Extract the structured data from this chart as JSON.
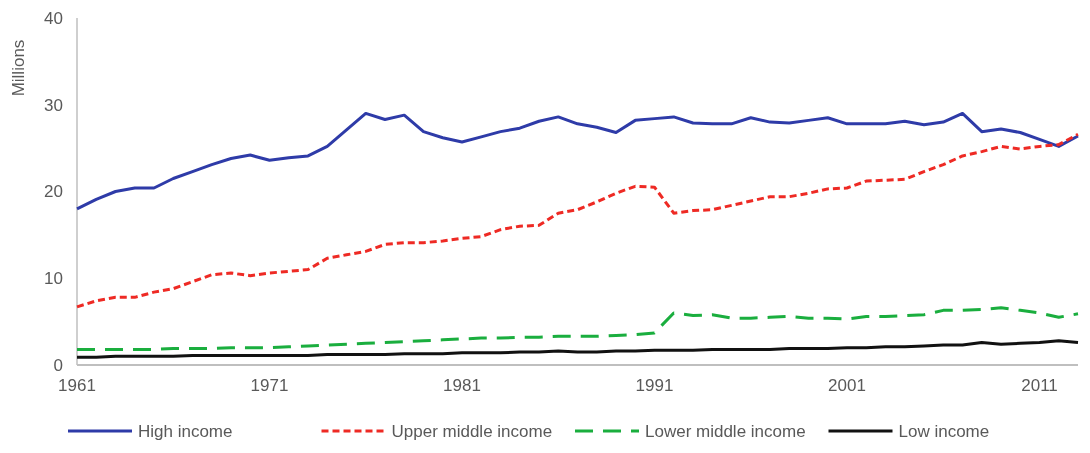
{
  "chart_data": {
    "type": "line",
    "ylabel": "Millions",
    "x": [
      1961,
      1962,
      1963,
      1964,
      1965,
      1966,
      1967,
      1968,
      1969,
      1970,
      1971,
      1972,
      1973,
      1974,
      1975,
      1976,
      1977,
      1978,
      1979,
      1980,
      1981,
      1982,
      1983,
      1984,
      1985,
      1986,
      1987,
      1988,
      1989,
      1990,
      1991,
      1992,
      1993,
      1994,
      1995,
      1996,
      1997,
      1998,
      1999,
      2000,
      2001,
      2002,
      2003,
      2004,
      2005,
      2006,
      2007,
      2008,
      2009,
      2010,
      2011,
      2012,
      2013
    ],
    "xlim": [
      1961,
      2013
    ],
    "xticks": [
      1961,
      1971,
      1981,
      1991,
      2001,
      2011
    ],
    "ylim": [
      0,
      40
    ],
    "yticks": [
      0,
      10,
      20,
      30,
      40
    ],
    "grid": false,
    "legend": "bottom",
    "series": [
      {
        "name": "High income",
        "color": "#2e3ba8",
        "line_style": "solid",
        "values": [
          18.0,
          19.1,
          20.0,
          20.4,
          20.4,
          21.5,
          22.3,
          23.1,
          23.8,
          24.2,
          23.6,
          23.9,
          24.1,
          25.2,
          27.1,
          29.0,
          28.3,
          28.8,
          26.9,
          26.2,
          25.7,
          26.3,
          26.9,
          27.3,
          28.1,
          28.6,
          27.8,
          27.4,
          26.8,
          28.2,
          28.4,
          28.6,
          27.9,
          27.8,
          27.8,
          28.5,
          28.0,
          27.9,
          28.2,
          28.5,
          27.8,
          27.8,
          27.8,
          28.1,
          27.7,
          28.0,
          29.0,
          26.9,
          27.2,
          26.8,
          26.0,
          25.2,
          26.4
        ]
      },
      {
        "name": "Upper middle income",
        "color": "#ee2a24",
        "line_style": "dotted",
        "values": [
          6.7,
          7.4,
          7.8,
          7.8,
          8.4,
          8.8,
          9.6,
          10.4,
          10.6,
          10.3,
          10.6,
          10.8,
          11.0,
          12.3,
          12.7,
          13.1,
          13.9,
          14.1,
          14.1,
          14.3,
          14.6,
          14.8,
          15.6,
          16.0,
          16.1,
          17.5,
          17.9,
          18.8,
          19.8,
          20.6,
          20.5,
          17.5,
          17.8,
          17.9,
          18.4,
          18.9,
          19.4,
          19.4,
          19.8,
          20.3,
          20.4,
          21.2,
          21.3,
          21.4,
          22.3,
          23.1,
          24.1,
          24.6,
          25.2,
          24.9,
          25.2,
          25.4,
          26.6
        ]
      },
      {
        "name": "Lower middle income",
        "color": "#1aae3e",
        "line_style": "dashed",
        "values": [
          1.8,
          1.8,
          1.8,
          1.8,
          1.8,
          1.9,
          1.9,
          1.9,
          2.0,
          2.0,
          2.0,
          2.1,
          2.2,
          2.3,
          2.4,
          2.5,
          2.6,
          2.7,
          2.8,
          2.9,
          3.0,
          3.1,
          3.1,
          3.2,
          3.2,
          3.3,
          3.3,
          3.3,
          3.4,
          3.5,
          3.7,
          6.0,
          5.7,
          5.8,
          5.4,
          5.4,
          5.5,
          5.6,
          5.4,
          5.4,
          5.3,
          5.6,
          5.6,
          5.7,
          5.8,
          6.3,
          6.3,
          6.4,
          6.6,
          6.3,
          6.0,
          5.5,
          5.9
        ]
      },
      {
        "name": "Low income",
        "color": "#111111",
        "line_style": "solid",
        "values": [
          0.9,
          0.9,
          1.0,
          1.0,
          1.0,
          1.0,
          1.1,
          1.1,
          1.1,
          1.1,
          1.1,
          1.1,
          1.1,
          1.2,
          1.2,
          1.2,
          1.2,
          1.3,
          1.3,
          1.3,
          1.4,
          1.4,
          1.4,
          1.5,
          1.5,
          1.6,
          1.5,
          1.5,
          1.6,
          1.6,
          1.7,
          1.7,
          1.7,
          1.8,
          1.8,
          1.8,
          1.8,
          1.9,
          1.9,
          1.9,
          2.0,
          2.0,
          2.1,
          2.1,
          2.2,
          2.3,
          2.3,
          2.6,
          2.4,
          2.5,
          2.6,
          2.8,
          2.6
        ]
      }
    ]
  }
}
